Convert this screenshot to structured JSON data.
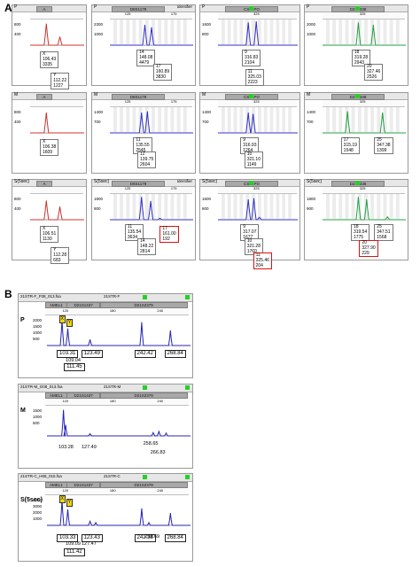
{
  "panel_labels": {
    "a": "A",
    "b": "B"
  },
  "sectionA": {
    "rows": [
      {
        "sample": "P",
        "panels": [
          {
            "marker": "A",
            "color": "#d0312d",
            "ylabels": [
              "800",
              "400"
            ],
            "labels": [
              {
                "text": [
                  "X",
                  "106.43",
                  "3335"
                ]
              },
              {
                "text": [
                  "Y",
                  "112.22",
                  "1227"
                ]
              }
            ]
          },
          {
            "marker": "D8S1179",
            "ident": "Identifier",
            "color": "#3030c8",
            "ticks": [
              "125",
              "175"
            ],
            "ylabels": [
              "2300",
              "1000"
            ],
            "labels": [
              {
                "text": [
                  "14",
                  "148.08",
                  "4479"
                ]
              },
              {
                "text": [
                  "17",
                  "160.89",
                  "3830"
                ]
              }
            ]
          },
          {
            "marker": "CSF1PO",
            "color": "#3030c8",
            "ticks": [
              "325"
            ],
            "ylabels": [
              "1600",
              "800"
            ],
            "labels": [
              {
                "text": [
                  "9",
                  "316.83",
                  "2104"
                ]
              },
              {
                "text": [
                  "11",
                  "325.03",
                  "2223"
                ]
              }
            ]
          },
          {
            "marker": "D2S1338",
            "color": "#20a040",
            "ticks": [
              "325"
            ],
            "ylabels": [
              "2000",
              "1000"
            ],
            "labels": [
              {
                "text": [
                  "18",
                  "319.28",
                  "2943"
                ]
              },
              {
                "text": [
                  "20",
                  "327.46",
                  "2526"
                ]
              }
            ]
          }
        ]
      },
      {
        "sample": "M",
        "panels": [
          {
            "marker": "A",
            "color": "#d0312d",
            "ylabels": [
              "800",
              "400"
            ],
            "labels": [
              {
                "text": [
                  "X",
                  "106.38",
                  "1609"
                ]
              }
            ]
          },
          {
            "marker": "D8S1179",
            "color": "#3030c8",
            "ticks": [
              "125",
              "175"
            ],
            "ylabels": [
              "1400",
              "700"
            ],
            "labels": [
              {
                "text": [
                  "11",
                  "135.55",
                  "2545"
                ]
              },
              {
                "text": [
                  "12",
                  "139.75",
                  "2604"
                ]
              }
            ]
          },
          {
            "marker": "CSF1PO",
            "color": "#3030c8",
            "ticks": [
              "325"
            ],
            "ylabels": [
              "1400",
              "700"
            ],
            "labels": [
              {
                "text": [
                  "9",
                  "316.93",
                  "1264"
                ]
              },
              {
                "text": [
                  "10",
                  "321.10",
                  "1149"
                ]
              }
            ]
          },
          {
            "marker": "D2S1338",
            "color": "#20a040",
            "ticks": [
              "325"
            ],
            "ylabels": [
              "1400",
              "700"
            ],
            "labels": [
              {
                "text": [
                  "17",
                  "315.19",
                  "1548"
                ]
              },
              {
                "text": [
                  "25",
                  "347.38",
                  "1399"
                ]
              }
            ]
          }
        ]
      },
      {
        "sample": "S(5sec)",
        "panels": [
          {
            "marker": "A",
            "color": "#d0312d",
            "ylabels": [
              "800",
              "400"
            ],
            "labels": [
              {
                "text": [
                  "X",
                  "106.51",
                  "1130"
                ]
              },
              {
                "text": [
                  "Y",
                  "112.28",
                  "683"
                ]
              }
            ]
          },
          {
            "marker": "D8S1179",
            "ident": "Identifier",
            "color": "#3030c8",
            "ticks": [
              "125",
              "175"
            ],
            "ylabels": [
              "1800",
              "900"
            ],
            "labels": [
              {
                "text": [
                  "11",
                  "135.54",
                  "3634"
                ]
              },
              {
                "text": [
                  "14",
                  "148.22",
                  "2814"
                ]
              },
              {
                "text": [
                  "17",
                  "161.00",
                  "192"
                ],
                "red": true
              }
            ]
          },
          {
            "marker": "CSF1PO",
            "color": "#3030c8",
            "ticks": [
              "325"
            ],
            "ylabels": [
              "1600",
              "800"
            ],
            "labels": [
              {
                "text": [
                  "9",
                  "317.07",
                  "1677"
                ]
              },
              {
                "text": [
                  "10",
                  "321.28",
                  "1760"
                ]
              },
              {
                "text": [
                  "11",
                  "325.46",
                  "204"
                ],
                "red": true
              }
            ]
          },
          {
            "marker": "D2S1338",
            "color": "#20a040",
            "ticks": [
              "325"
            ],
            "ylabels": [
              "1800",
              "900"
            ],
            "labels": [
              {
                "text": [
                  "18",
                  "319.54",
                  "1775"
                ]
              },
              {
                "text": [
                  "25",
                  "347.51",
                  "1568"
                ]
              },
              {
                "text": [
                  "20",
                  "327.90",
                  "229"
                ],
                "red": true
              }
            ]
          }
        ]
      }
    ]
  },
  "sectionB": {
    "rows": [
      {
        "sample": "P",
        "file": "21STR-F_F08_013.fsa",
        "title": "21STR-F",
        "markers": [
          "AMEL1",
          "D21S1437",
          "D21S2379"
        ],
        "ticks": [
          "120",
          "180",
          "240"
        ],
        "ylabels": [
          "2000",
          "1500",
          "1000",
          "500"
        ],
        "boxes": [
          "103.31",
          "123.49",
          "242.42",
          "268.84",
          "111.45"
        ],
        "plain": [
          "109.04"
        ],
        "flags": [
          "X",
          "Y"
        ]
      },
      {
        "sample": "M",
        "file": "21STR-M_G08_013.fsa",
        "title": "21STR-M",
        "markers": [
          "AMEL1",
          "D21S1437",
          "D21S2379"
        ],
        "ticks": [
          "120",
          "180",
          "240"
        ],
        "ylabels": [
          "1500",
          "1000",
          "500"
        ],
        "boxes": [],
        "plain": [
          "103.28",
          "127.49",
          "258.65",
          "266.83"
        ],
        "flags": []
      },
      {
        "sample": "S(5sec)",
        "file": "21STR-C_H08_015.fsa",
        "title": "21STR-C",
        "markers": [
          "AMEL1",
          "D21S1437",
          "D21S2379"
        ],
        "ticks": [
          "120",
          "180",
          "240"
        ],
        "ylabels": [
          "4000",
          "3000",
          "2000",
          "1000"
        ],
        "boxes": [
          "103.33",
          "123.43",
          "242.38",
          "268.84",
          "111.42"
        ],
        "plain": [
          "109.09",
          "127.47",
          "258.69"
        ],
        "flags": [
          "X",
          "Y"
        ]
      }
    ]
  }
}
